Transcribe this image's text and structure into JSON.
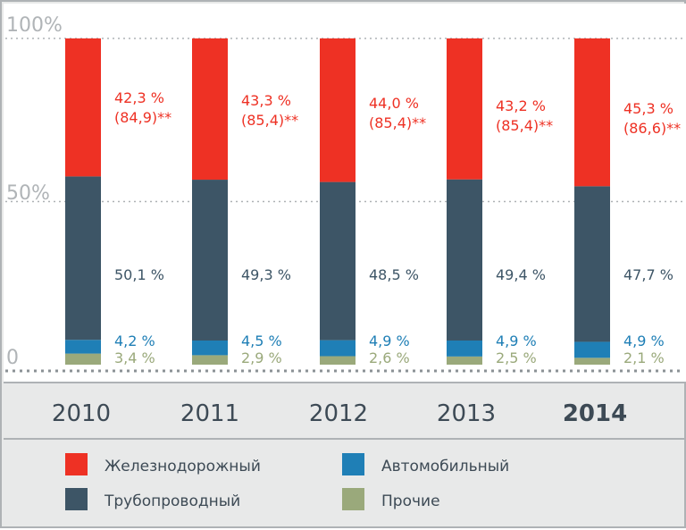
{
  "chart_data": {
    "type": "bar",
    "stacked": true,
    "percent": true,
    "categories": [
      "2010",
      "2011",
      "2012",
      "2013",
      "2014"
    ],
    "highlight_category": "2014",
    "y_ticks": [
      "100%",
      "50%",
      "0"
    ],
    "ylim": [
      0,
      100
    ],
    "grid": "dotted",
    "legend_position": "bottom",
    "series": [
      {
        "key": "other",
        "name": "Прочие",
        "color": "#9aa97b",
        "values": [
          3.4,
          2.9,
          2.6,
          2.5,
          2.1
        ],
        "labels": [
          "3,4 %",
          "2,9 %",
          "2,6 %",
          "2,5 %",
          "2,1 %"
        ]
      },
      {
        "key": "auto",
        "name": "Автомобильный",
        "color": "#1f7fb6",
        "values": [
          4.2,
          4.5,
          4.9,
          4.9,
          4.9
        ],
        "labels": [
          "4,2 %",
          "4,5 %",
          "4,9 %",
          "4,9 %",
          "4,9 %"
        ]
      },
      {
        "key": "pipe",
        "name": "Трубопроводный",
        "color": "#3d5566",
        "values": [
          50.1,
          49.3,
          48.5,
          49.4,
          47.7
        ],
        "labels": [
          "50,1 %",
          "49,3 %",
          "48,5 %",
          "49,4 %",
          "47,7 %"
        ]
      },
      {
        "key": "rail",
        "name": "Железнодорожный",
        "color": "#ee3124",
        "values": [
          42.3,
          43.3,
          44.0,
          43.2,
          45.3
        ],
        "labels": [
          "42,3 %",
          "43,3 %",
          "44,0 %",
          "43,2 %",
          "45,3 %"
        ],
        "extra_labels": [
          "(84,9)**",
          "(85,4)**",
          "(85,4)**",
          "(85,4)**",
          "(86,6)**"
        ]
      }
    ],
    "legend_order": [
      "rail",
      "auto",
      "pipe",
      "other"
    ]
  }
}
